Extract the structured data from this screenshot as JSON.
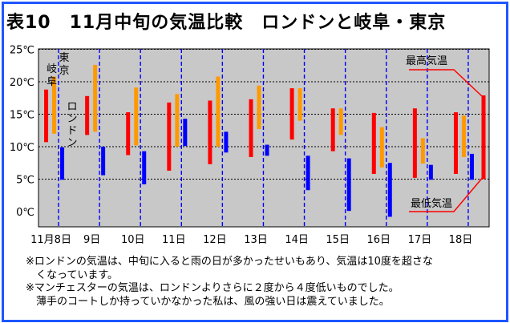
{
  "title": "表10　11月中旬の気温比較　ロンドンと岐阜・東京",
  "notes": [
    "※ロンドンの気温は、中旬に入ると雨の日が多かったせいもあり、気温は10度を超さな",
    "　くなっています。",
    "※マンチェスターの気温は、ロンドンよりさらに２度から４度低いものでした。",
    "　薄手のコートしか持っていかなかった私は、風の強い日は震えていました。"
  ],
  "colors": {
    "border": "#1e56ff",
    "plot_bg": "#c8c8c8",
    "tokyo": "#ff0000",
    "gifu": "#ff9900",
    "london": "#0000ff",
    "divider": "#0000ff",
    "legend": "#ff0000"
  },
  "chart_data": {
    "type": "bar",
    "subtype": "floating-range",
    "categories": [
      "11月8日",
      "9日",
      "10日",
      "11日",
      "12日",
      "13日",
      "14日",
      "15日",
      "16日",
      "17日",
      "18日"
    ],
    "yticks": [
      "0℃",
      "5℃",
      "10℃",
      "15℃",
      "20℃",
      "25℃"
    ],
    "ylim": [
      -1.5,
      25
    ],
    "grid": true,
    "series": [
      {
        "name": "東京",
        "color": "#ff0000",
        "ranges": [
          [
            10.7,
            18.8
          ],
          [
            11.8,
            17.8
          ],
          [
            8.7,
            15.3
          ],
          [
            6.3,
            16.8
          ],
          [
            7.3,
            17.1
          ],
          [
            8.4,
            17.3
          ],
          [
            11.1,
            19.0
          ],
          [
            9.3,
            15.9
          ],
          [
            5.8,
            15.2
          ],
          [
            5.2,
            15.9
          ],
          [
            5.8,
            15.3
          ]
        ]
      },
      {
        "name": "岐阜",
        "color": "#ff9900",
        "ranges": [
          [
            12.0,
            20.8
          ],
          [
            12.3,
            22.6
          ],
          [
            10.2,
            19.1
          ],
          [
            10.0,
            18.1
          ],
          [
            10.0,
            20.8
          ],
          [
            12.7,
            19.4
          ],
          [
            14.0,
            19.0
          ],
          [
            11.8,
            15.9
          ],
          [
            6.8,
            13.0
          ],
          [
            7.4,
            11.3
          ],
          [
            8.4,
            14.8
          ]
        ]
      },
      {
        "name": "ロンドン",
        "color": "#0000ff",
        "ranges": [
          [
            4.9,
            9.9
          ],
          [
            5.6,
            10.0
          ],
          [
            4.2,
            9.3
          ],
          [
            10.1,
            14.3
          ],
          [
            9.1,
            12.3
          ],
          [
            8.6,
            10.3
          ],
          [
            3.3,
            8.6
          ],
          [
            0.1,
            8.2
          ],
          [
            -0.8,
            7.5
          ],
          [
            4.9,
            7.2
          ],
          [
            4.9,
            8.9
          ]
        ]
      }
    ],
    "series_labels": {
      "tokyo": "東京",
      "gifu": "岐阜",
      "london": "ロンドン"
    },
    "legend": {
      "high": "最高気温",
      "low": "最低気温",
      "range": [
        5.0,
        17.9
      ]
    }
  }
}
